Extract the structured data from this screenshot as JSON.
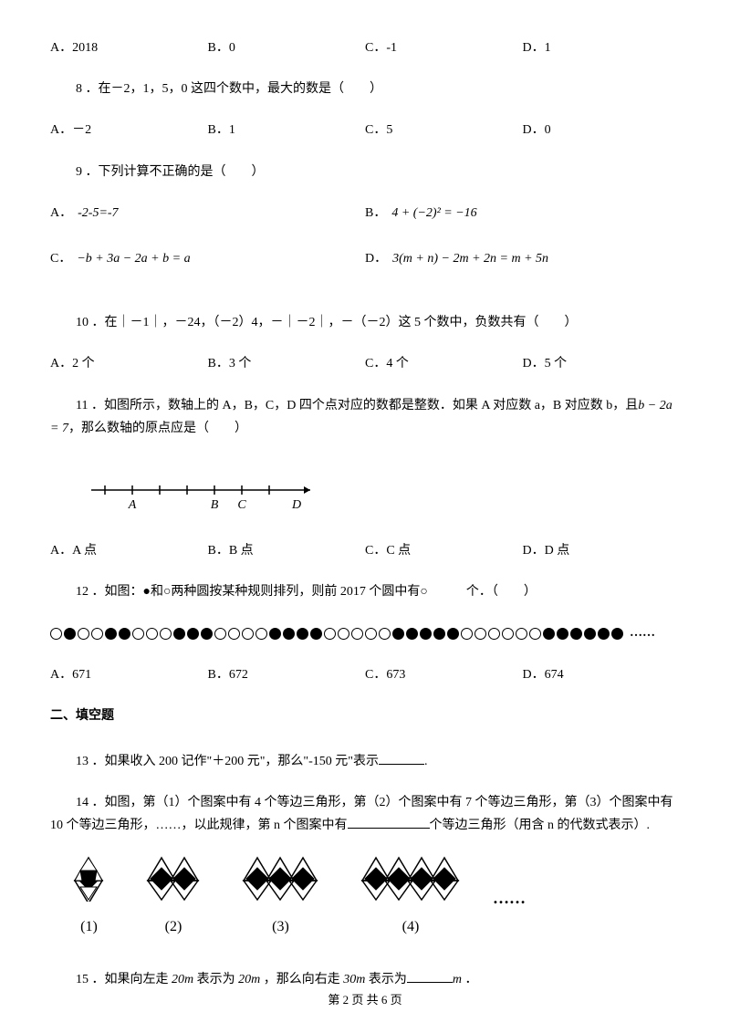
{
  "q7": {
    "opts": [
      "A．2018",
      "B．0",
      "C．-1",
      "D．1"
    ]
  },
  "q8": {
    "text": "8 ．在－2，1，5，0 这四个数中，最大的数是（　　）",
    "opts": [
      "A．－2",
      "B．1",
      "C．5",
      "D．0"
    ]
  },
  "q9": {
    "text": "9 ．下列计算不正确的是（　　）",
    "optA_label": "A．",
    "optA_formula": "-2-5=-7",
    "optB_label": "B．",
    "optB_formula": "4 + (−2)² = −16",
    "optC_label": "C．",
    "optC_formula": "−b + 3a − 2a + b = a",
    "optD_label": "D．",
    "optD_formula": "3(m + n) − 2m + 2n = m + 5n"
  },
  "q10": {
    "text": "10 ．在｜－1｜，－24，（－2）4，－｜－2｜，－（－2）这 5 个数中，负数共有（　　）",
    "opts": [
      "A．2 个",
      "B．3 个",
      "C．4 个",
      "D．5 个"
    ]
  },
  "q11": {
    "text_part1": "11 ．如图所示，数轴上的 A，B，C，D 四个点对应的数都是整数．如果 A 对应数 a，B 对应数 b，且",
    "formula": "b − 2a = 7",
    "text_part2": "，那么数轴的原点应是（　　）",
    "opts": [
      "A．A 点",
      "B．B 点",
      "C．C 点",
      "D．D 点"
    ],
    "labels": [
      "A",
      "B",
      "C",
      "D"
    ]
  },
  "q12": {
    "text": "12 ．如图：●和○两种圆按某种规则排列，则前 2017 个圆中有○　　　个．（　　）",
    "pattern": [
      0,
      1,
      0,
      0,
      1,
      1,
      0,
      0,
      0,
      1,
      1,
      1,
      0,
      0,
      0,
      0,
      1,
      1,
      1,
      1,
      0,
      0,
      0,
      0,
      0,
      1,
      1,
      1,
      1,
      1,
      0,
      0,
      0,
      0,
      0,
      0,
      1,
      1,
      1,
      1,
      1,
      1
    ],
    "dots": "……",
    "opts": [
      "A．671",
      "B．672",
      "C．673",
      "D．674"
    ]
  },
  "section2": "二、填空题",
  "q13": {
    "text": "13 ．如果收入 200 记作\"＋200 元\"，那么\"-150 元\"表示",
    "suffix": "."
  },
  "q14": {
    "text_part1": "14 ．如图，第（1）个图案中有 4 个等边三角形，第（2）个图案中有 7 个等边三角形，第（3）个图案中有 10 个等边三角形，……，以此规律，第 n 个图案中有",
    "text_part2": "个等边三角形（用含 n 的代数式表示）.",
    "labels": [
      "(1)",
      "(2)",
      "(3)",
      "(4)"
    ],
    "dots": "……"
  },
  "q15": {
    "text_part1": "15 ．如果向左走",
    "val1": "20m",
    "text_part2": "表示为",
    "val2": "20m",
    "text_part3": "，那么向右走",
    "val3": "30m",
    "text_part4": "表示为",
    "unit": "m",
    "suffix": "．"
  },
  "footer": "第 2 页 共 6 页"
}
